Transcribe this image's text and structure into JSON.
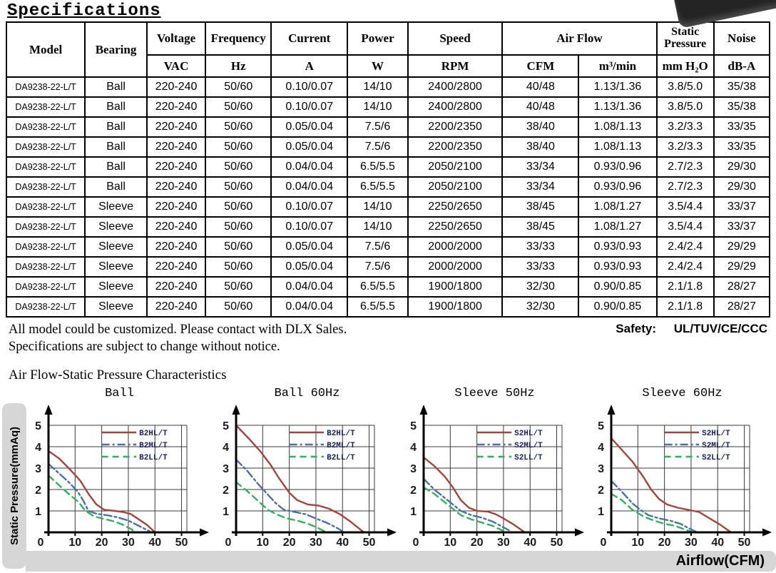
{
  "page": {
    "title": "Specifications",
    "notes": {
      "line1": "All model could be customized. Please contact with DLX Sales.",
      "line2": "Specifications are subject to change without notice."
    },
    "safety_label": "Safety:",
    "safety_value": "UL/TUV/CE/CCC",
    "section2_title": "Air Flow-Static Pressure Characteristics",
    "y_band_label": "Static Pressure(mmAq)",
    "x_band_label": "Airflow(CFM)"
  },
  "table": {
    "header": {
      "model": "Model",
      "bearing": "Bearing",
      "voltage": "Voltage",
      "voltage_unit": "VAC",
      "frequency": "Frequency",
      "frequency_unit": "Hz",
      "current": "Current",
      "current_unit": "A",
      "power": "Power",
      "power_unit": "W",
      "speed": "Speed",
      "speed_unit": "RPM",
      "airflow": "Air Flow",
      "airflow_unit_cfm": "CFM",
      "airflow_unit_m3": "m³/min",
      "static_pressure_line1": "Static",
      "static_pressure_line2": "Pressure",
      "static_pressure_unit": "mm H₂O",
      "noise": "Noise",
      "noise_unit": "dB-A"
    },
    "rows": [
      [
        "DA9238-22-L/T",
        "Ball",
        "220-240",
        "50/60",
        "0.10/0.07",
        "14/10",
        "2400/2800",
        "40/48",
        "1.13/1.36",
        "3.8/5.0",
        "35/38"
      ],
      [
        "DA9238-22-L/T",
        "Ball",
        "220-240",
        "50/60",
        "0.10/0.07",
        "14/10",
        "2400/2800",
        "40/48",
        "1.13/1.36",
        "3.8/5.0",
        "35/38"
      ],
      [
        "DA9238-22-L/T",
        "Ball",
        "220-240",
        "50/60",
        "0.05/0.04",
        "7.5/6",
        "2200/2350",
        "38/40",
        "1.08/1.13",
        "3.2/3.3",
        "33/35"
      ],
      [
        "DA9238-22-L/T",
        "Ball",
        "220-240",
        "50/60",
        "0.05/0.04",
        "7.5/6",
        "2200/2350",
        "38/40",
        "1.08/1.13",
        "3.2/3.3",
        "33/35"
      ],
      [
        "DA9238-22-L/T",
        "Ball",
        "220-240",
        "50/60",
        "0.04/0.04",
        "6.5/5.5",
        "2050/2100",
        "33/34",
        "0.93/0.96",
        "2.7/2.3",
        "29/30"
      ],
      [
        "DA9238-22-L/T",
        "Ball",
        "220-240",
        "50/60",
        "0.04/0.04",
        "6.5/5.5",
        "2050/2100",
        "33/34",
        "0.93/0.96",
        "2.7/2.3",
        "29/30"
      ],
      [
        "DA9238-22-L/T",
        "Sleeve",
        "220-240",
        "50/60",
        "0.10/0.07",
        "14/10",
        "2250/2650",
        "38/45",
        "1.08/1.27",
        "3.5/4.4",
        "33/37"
      ],
      [
        "DA9238-22-L/T",
        "Sleeve",
        "220-240",
        "50/60",
        "0.10/0.07",
        "14/10",
        "2250/2650",
        "38/45",
        "1.08/1.27",
        "3.5/4.4",
        "33/37"
      ],
      [
        "DA9238-22-L/T",
        "Sleeve",
        "220-240",
        "50/60",
        "0.05/0.04",
        "7.5/6",
        "2000/2000",
        "33/33",
        "0.93/0.93",
        "2.4/2.4",
        "29/29"
      ],
      [
        "DA9238-22-L/T",
        "Sleeve",
        "220-240",
        "50/60",
        "0.05/0.04",
        "7.5/6",
        "2000/2000",
        "33/33",
        "0.93/0.93",
        "2.4/2.4",
        "29/29"
      ],
      [
        "DA9238-22-L/T",
        "Sleeve",
        "220-240",
        "50/60",
        "0.04/0.04",
        "6.5/5.5",
        "1900/1800",
        "32/30",
        "0.90/0.85",
        "2.1/1.8",
        "28/27"
      ],
      [
        "DA9238-22-L/T",
        "Sleeve",
        "220-240",
        "50/60",
        "0.04/0.04",
        "6.5/5.5",
        "1900/1800",
        "32/30",
        "0.90/0.85",
        "2.1/1.8",
        "28/27"
      ]
    ]
  },
  "chart_data": [
    {
      "type": "line",
      "title": "Ball",
      "xlabel": "Airflow(CFM)",
      "ylabel": "Static Pressure(mmAq)",
      "xlim": [
        0,
        52
      ],
      "ylim": [
        0,
        5
      ],
      "xticks": [
        0,
        10,
        20,
        30,
        40,
        50
      ],
      "yticks": [
        0,
        1,
        2,
        3,
        4,
        5
      ],
      "grid": true,
      "legend_position": "top-right",
      "series": [
        {
          "name": "B2HL/T",
          "color": "#a4433b",
          "style": "solid",
          "points": [
            [
              0,
              3.8
            ],
            [
              4,
              3.45
            ],
            [
              8,
              2.95
            ],
            [
              12,
              2.4
            ],
            [
              15,
              1.8
            ],
            [
              18,
              1.3
            ],
            [
              21,
              1.05
            ],
            [
              25,
              1.0
            ],
            [
              28,
              0.95
            ],
            [
              31,
              0.85
            ],
            [
              34,
              0.6
            ],
            [
              37,
              0.35
            ],
            [
              40,
              0
            ]
          ]
        },
        {
          "name": "B2ML/T",
          "color": "#4c70a3",
          "style": "dashdot",
          "points": [
            [
              0,
              3.2
            ],
            [
              4,
              2.75
            ],
            [
              8,
              2.3
            ],
            [
              11,
              1.9
            ],
            [
              13,
              1.5
            ],
            [
              15,
              1.0
            ],
            [
              18,
              0.87
            ],
            [
              22,
              0.8
            ],
            [
              26,
              0.7
            ],
            [
              30,
              0.55
            ],
            [
              34,
              0.3
            ],
            [
              38,
              0.05
            ]
          ]
        },
        {
          "name": "B2LL/T",
          "color": "#2fb05c",
          "style": "dashed",
          "points": [
            [
              0,
              2.65
            ],
            [
              4,
              2.2
            ],
            [
              8,
              1.75
            ],
            [
              11,
              1.45
            ],
            [
              14,
              1.0
            ],
            [
              17,
              0.75
            ],
            [
              21,
              0.62
            ],
            [
              25,
              0.5
            ],
            [
              28,
              0.35
            ],
            [
              31,
              0.15
            ],
            [
              33,
              0
            ]
          ]
        }
      ]
    },
    {
      "type": "line",
      "title": "Ball 60Hz",
      "xlabel": "Airflow(CFM)",
      "ylabel": "Static Pressure(mmAq)",
      "xlim": [
        0,
        52
      ],
      "ylim": [
        0,
        5
      ],
      "xticks": [
        0,
        10,
        20,
        30,
        40,
        50
      ],
      "yticks": [
        0,
        1,
        2,
        3,
        4,
        5
      ],
      "grid": true,
      "legend_position": "top-right",
      "series": [
        {
          "name": "B2HL/T",
          "color": "#a4433b",
          "style": "solid",
          "points": [
            [
              0,
              5.0
            ],
            [
              5,
              4.35
            ],
            [
              9,
              3.8
            ],
            [
              13,
              3.15
            ],
            [
              16,
              2.55
            ],
            [
              20,
              1.85
            ],
            [
              23,
              1.5
            ],
            [
              27,
              1.3
            ],
            [
              31,
              1.25
            ],
            [
              35,
              1.1
            ],
            [
              39,
              0.85
            ],
            [
              43,
              0.5
            ],
            [
              48,
              0
            ]
          ]
        },
        {
          "name": "B2ML/T",
          "color": "#4c70a3",
          "style": "dashdot",
          "points": [
            [
              0,
              3.4
            ],
            [
              4,
              2.9
            ],
            [
              8,
              2.3
            ],
            [
              12,
              1.75
            ],
            [
              15,
              1.35
            ],
            [
              18,
              1.05
            ],
            [
              22,
              0.95
            ],
            [
              26,
              0.85
            ],
            [
              30,
              0.65
            ],
            [
              34,
              0.45
            ],
            [
              38,
              0.2
            ],
            [
              40,
              0.05
            ]
          ]
        },
        {
          "name": "B2LL/T",
          "color": "#2fb05c",
          "style": "dashed",
          "points": [
            [
              0,
              2.35
            ],
            [
              4,
              1.95
            ],
            [
              8,
              1.5
            ],
            [
              12,
              1.05
            ],
            [
              15,
              0.85
            ],
            [
              19,
              0.65
            ],
            [
              23,
              0.55
            ],
            [
              27,
              0.4
            ],
            [
              30,
              0.25
            ],
            [
              34,
              0
            ]
          ]
        }
      ]
    },
    {
      "type": "line",
      "title": "Sleeve 50Hz",
      "xlabel": "Airflow(CFM)",
      "ylabel": "Static Pressure(mmAq)",
      "xlim": [
        0,
        52
      ],
      "ylim": [
        0,
        5
      ],
      "xticks": [
        0,
        10,
        20,
        30,
        40,
        50
      ],
      "yticks": [
        0,
        1,
        2,
        3,
        4,
        5
      ],
      "grid": true,
      "legend_position": "top-right",
      "series": [
        {
          "name": "S2HL/T",
          "color": "#a4433b",
          "style": "solid",
          "points": [
            [
              0,
              3.5
            ],
            [
              4,
              3.1
            ],
            [
              8,
              2.6
            ],
            [
              11,
              2.1
            ],
            [
              14,
              1.5
            ],
            [
              17,
              1.15
            ],
            [
              20,
              1.0
            ],
            [
              24,
              0.97
            ],
            [
              27,
              0.85
            ],
            [
              30,
              0.65
            ],
            [
              34,
              0.35
            ],
            [
              38,
              0
            ]
          ]
        },
        {
          "name": "S2ML/T",
          "color": "#4c70a3",
          "style": "dashdot",
          "points": [
            [
              0,
              2.5
            ],
            [
              4,
              2.0
            ],
            [
              8,
              1.6
            ],
            [
              11,
              1.3
            ],
            [
              14,
              1.0
            ],
            [
              18,
              0.8
            ],
            [
              22,
              0.68
            ],
            [
              26,
              0.5
            ],
            [
              29,
              0.3
            ],
            [
              32,
              0.1
            ]
          ]
        },
        {
          "name": "S2LL/T",
          "color": "#2fb05c",
          "style": "dashed",
          "points": [
            [
              0,
              2.1
            ],
            [
              4,
              1.8
            ],
            [
              8,
              1.4
            ],
            [
              11,
              1.1
            ],
            [
              14,
              0.8
            ],
            [
              18,
              0.6
            ],
            [
              22,
              0.45
            ],
            [
              26,
              0.3
            ],
            [
              29,
              0.12
            ],
            [
              31,
              0
            ]
          ]
        }
      ]
    },
    {
      "type": "line",
      "title": "Sleeve 60Hz",
      "xlabel": "Airflow(CFM)",
      "ylabel": "Static Pressure(mmAq)",
      "xlim": [
        0,
        52
      ],
      "ylim": [
        0,
        5
      ],
      "xticks": [
        0,
        10,
        20,
        30,
        40,
        50
      ],
      "yticks": [
        0,
        1,
        2,
        3,
        4,
        5
      ],
      "grid": true,
      "legend_position": "top-right",
      "series": [
        {
          "name": "S2HL/T",
          "color": "#a4433b",
          "style": "solid",
          "points": [
            [
              0,
              4.4
            ],
            [
              4,
              3.85
            ],
            [
              8,
              3.3
            ],
            [
              12,
              2.6
            ],
            [
              15,
              2.0
            ],
            [
              18,
              1.55
            ],
            [
              21,
              1.3
            ],
            [
              25,
              1.15
            ],
            [
              29,
              1.05
            ],
            [
              33,
              0.95
            ],
            [
              37,
              0.65
            ],
            [
              41,
              0.35
            ],
            [
              45,
              0
            ]
          ]
        },
        {
          "name": "S2ML/T",
          "color": "#4c70a3",
          "style": "dashdot",
          "points": [
            [
              0,
              2.4
            ],
            [
              4,
              1.9
            ],
            [
              8,
              1.35
            ],
            [
              11,
              1.05
            ],
            [
              14,
              0.8
            ],
            [
              18,
              0.65
            ],
            [
              22,
              0.55
            ],
            [
              26,
              0.4
            ],
            [
              29,
              0.2
            ],
            [
              32,
              0.02
            ]
          ]
        },
        {
          "name": "S2LL/T",
          "color": "#2fb05c",
          "style": "dashed",
          "points": [
            [
              0,
              1.8
            ],
            [
              4,
              1.5
            ],
            [
              8,
              1.05
            ],
            [
              12,
              0.75
            ],
            [
              16,
              0.55
            ],
            [
              20,
              0.4
            ],
            [
              24,
              0.3
            ],
            [
              28,
              0.12
            ],
            [
              31,
              0
            ]
          ]
        }
      ]
    }
  ]
}
